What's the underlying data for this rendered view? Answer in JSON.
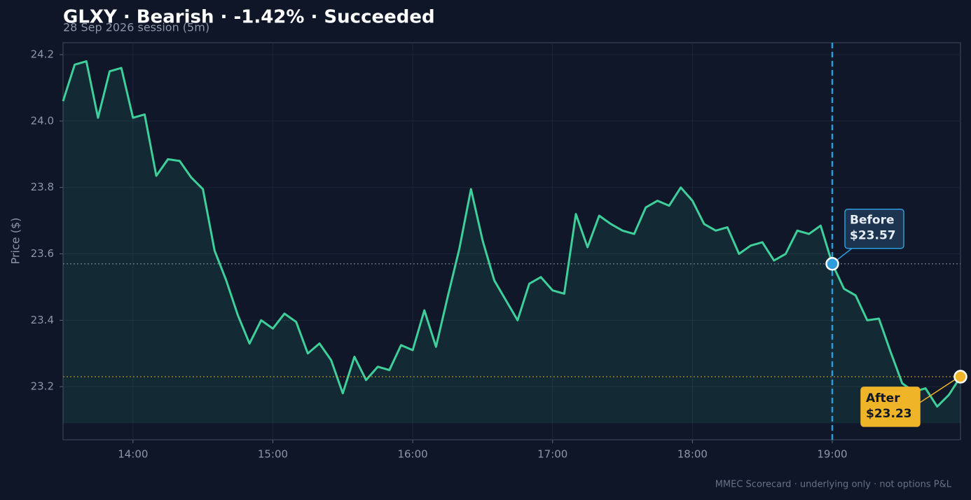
{
  "chart_data": {
    "type": "line",
    "title": "GLXY · Bearish · -1.42% · Succeeded",
    "subtitle": "28 Sep 2026 session (5m)",
    "y_label": "Price ($)",
    "footer": "MMEC Scorecard · underlying only · not options P&L",
    "x": [
      "13:30",
      "13:35",
      "13:40",
      "13:45",
      "13:50",
      "13:55",
      "14:00",
      "14:05",
      "14:10",
      "14:15",
      "14:20",
      "14:25",
      "14:30",
      "14:35",
      "14:40",
      "14:45",
      "14:50",
      "14:55",
      "15:00",
      "15:05",
      "15:10",
      "15:15",
      "15:20",
      "15:25",
      "15:30",
      "15:35",
      "15:40",
      "15:45",
      "15:50",
      "15:55",
      "16:00",
      "16:05",
      "16:10",
      "16:15",
      "16:20",
      "16:25",
      "16:30",
      "16:35",
      "16:40",
      "16:45",
      "16:50",
      "16:55",
      "17:00",
      "17:05",
      "17:10",
      "17:15",
      "17:20",
      "17:25",
      "17:30",
      "17:35",
      "17:40",
      "17:45",
      "17:50",
      "17:55",
      "18:00",
      "18:05",
      "18:10",
      "18:15",
      "18:20",
      "18:25",
      "18:30",
      "18:35",
      "18:40",
      "18:45",
      "18:50",
      "18:55",
      "19:00",
      "19:05",
      "19:10",
      "19:15",
      "19:20",
      "19:25",
      "19:30",
      "19:35",
      "19:40",
      "19:45",
      "19:50",
      "19:55"
    ],
    "series": [
      {
        "name": "GLXY",
        "color": "#3ecf9a",
        "values": [
          24.06,
          24.17,
          24.18,
          24.01,
          24.15,
          24.16,
          24.01,
          24.02,
          23.835,
          23.885,
          23.88,
          23.83,
          23.795,
          23.61,
          23.52,
          23.415,
          23.33,
          23.4,
          23.375,
          23.42,
          23.395,
          23.3,
          23.33,
          23.28,
          23.18,
          23.29,
          23.22,
          23.26,
          23.25,
          23.325,
          23.31,
          23.43,
          23.32,
          23.47,
          23.615,
          23.795,
          23.64,
          23.52,
          23.46,
          23.4,
          23.51,
          23.53,
          23.49,
          23.48,
          23.72,
          23.62,
          23.715,
          23.69,
          23.67,
          23.66,
          23.74,
          23.76,
          23.745,
          23.8,
          23.76,
          23.69,
          23.67,
          23.68,
          23.6,
          23.625,
          23.635,
          23.58,
          23.6,
          23.67,
          23.66,
          23.685,
          23.57,
          23.495,
          23.475,
          23.4,
          23.405,
          23.305,
          23.21,
          23.185,
          23.195,
          23.14,
          23.175,
          23.23
        ]
      }
    ],
    "fill_base": 23.09,
    "xlim": [
      "13:30",
      "19:55"
    ],
    "xticks": [
      "14:00",
      "15:00",
      "16:00",
      "17:00",
      "18:00",
      "19:00"
    ],
    "ylim": [
      23.04,
      24.236
    ],
    "yticks": [
      {
        "value": 23.2,
        "label": "23.2"
      },
      {
        "value": 23.4,
        "label": "23.4"
      },
      {
        "value": 23.6,
        "label": "23.6"
      },
      {
        "value": 23.8,
        "label": "23.8"
      },
      {
        "value": 24.0,
        "label": "24.0"
      },
      {
        "value": 24.2,
        "label": "24.2"
      }
    ],
    "grid": true,
    "annotations": [
      {
        "label": "Before",
        "value_label": "$23.57",
        "x": "19:00",
        "value": 23.57,
        "color": "#2d9cdb"
      },
      {
        "label": "After",
        "value_label": "$23.23",
        "x": "19:55",
        "value": 23.23,
        "color": "#f0b429"
      }
    ]
  }
}
